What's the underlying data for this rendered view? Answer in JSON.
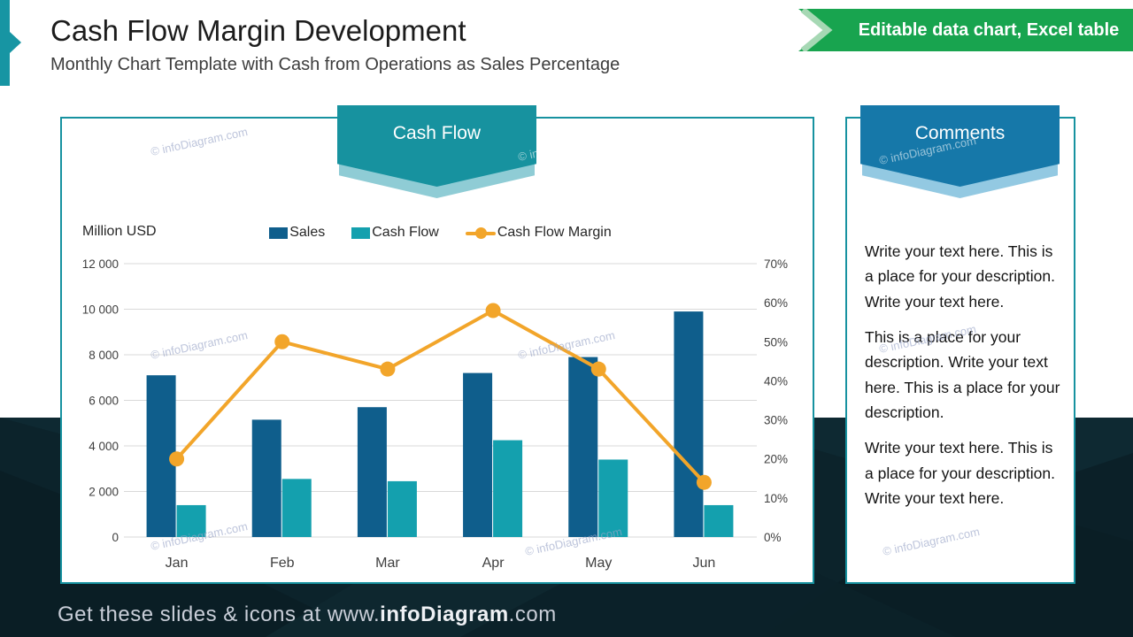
{
  "slide": {
    "title": "Cash Flow Margin Development",
    "subtitle": "Monthly Chart Template with Cash from Operations as Sales Percentage",
    "ribbon_label": "Editable data chart, Excel table",
    "watermark": "© infoDiagram.com",
    "footer": {
      "prefix": "Get these slides & icons at www.",
      "brand": "infoDiagram",
      "suffix": ".com"
    }
  },
  "chart_panel": {
    "banner": "Cash Flow",
    "units_label": "Million USD"
  },
  "comments_panel": {
    "banner": "Comments",
    "paragraphs": [
      "Write your text here. This is a place for your description. Write your text here.",
      "This is a place for your description. Write your text here. This is a place for your description.",
      "Write your text here. This is a place for your description. Write your text here."
    ]
  },
  "chart_data": {
    "type": "bar",
    "subtype": "combo-bar-line-dual-axis",
    "title": "Cash Flow",
    "categories": [
      "Jan",
      "Feb",
      "Mar",
      "Apr",
      "May",
      "Jun"
    ],
    "series": [
      {
        "name": "Sales",
        "type": "bar",
        "axis": "left",
        "color": "#0f5e8c",
        "values": [
          7100,
          5150,
          5700,
          7200,
          7900,
          9900
        ]
      },
      {
        "name": "Cash Flow",
        "type": "bar",
        "axis": "left",
        "color": "#14a0ae",
        "values": [
          1400,
          2550,
          2450,
          4250,
          3400,
          1400
        ]
      },
      {
        "name": "Cash Flow Margin",
        "type": "line",
        "axis": "right",
        "color": "#f2a52a",
        "values": [
          20,
          50,
          43,
          58,
          43,
          14
        ]
      }
    ],
    "left_axis": {
      "label": "Million USD",
      "min": 0,
      "max": 12000,
      "step": 2000,
      "ticks": [
        "12 000",
        "10 000",
        "8 000",
        "6 000",
        "4 000",
        "2 000",
        "0"
      ]
    },
    "right_axis": {
      "min": 0,
      "max": 70,
      "step": 10,
      "format": "percent",
      "ticks": [
        "70%",
        "60%",
        "50%",
        "40%",
        "30%",
        "20%",
        "10%",
        "0%"
      ]
    },
    "legend_position": "top",
    "grid": true,
    "gridline_color": "#d9d9d9",
    "axis_text_color": "#3f3f3f"
  },
  "colors": {
    "accent_teal": "#1795a3",
    "banner_teal": "#17929f",
    "banner_teal_shadow": "#8fccd5",
    "banner_blue": "#1678a9",
    "banner_blue_shadow": "#93c9e2",
    "ribbon_green": "#18a44f",
    "ribbon_green_light": "#a6d8b4",
    "panel_border": "#1792a0",
    "photo_band": "#0c232b"
  }
}
